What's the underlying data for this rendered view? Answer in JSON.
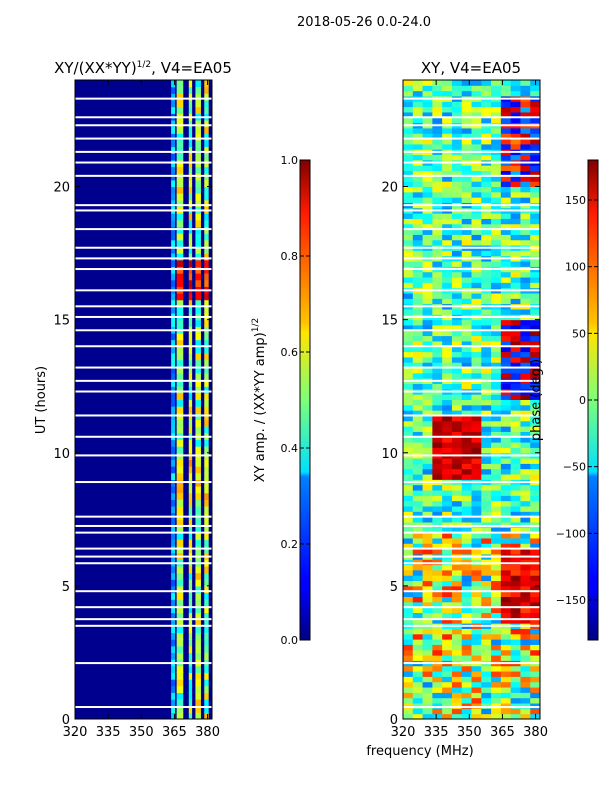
{
  "figure": {
    "suptitle": "2018-05-26 0.0-24.0"
  },
  "chart_data": [
    {
      "type": "heatmap",
      "panel": "amplitude",
      "title_main": "XY/(XX*YY)",
      "title_sup": "1/2",
      "title_tail": ", V4=EA05",
      "xlabel": "",
      "ylabel": "UT (hours)",
      "xlim": [
        320,
        382
      ],
      "ylim": [
        0,
        24
      ],
      "xticks": [
        320,
        335,
        350,
        365,
        380
      ],
      "yticks": [
        0,
        5,
        10,
        15,
        20
      ],
      "colorscale": "jet",
      "colorbar": {
        "label_main": "XY amp. / (XX*YY amp)",
        "label_sup": "1/2",
        "range": [
          0.0,
          1.0
        ],
        "ticks": [
          0.0,
          0.2,
          0.4,
          0.6,
          0.8,
          1.0
        ],
        "tick_labels": [
          "0.0",
          "0.2",
          "0.4",
          "0.6",
          "0.8",
          "1.0"
        ]
      }
    },
    {
      "type": "heatmap",
      "panel": "phase",
      "title": "XY, V4=EA05",
      "xlabel": "frequency (MHz)",
      "ylabel": "",
      "xlim": [
        320,
        382
      ],
      "ylim": [
        0,
        24
      ],
      "xticks": [
        320,
        335,
        350,
        365,
        380
      ],
      "yticks": [
        0,
        5,
        10,
        15,
        20
      ],
      "colorscale": "jet",
      "colorbar": {
        "label": "phase (deg.)",
        "range": [
          -180,
          180
        ],
        "ticks": [
          -150,
          -100,
          -50,
          0,
          50,
          100,
          150
        ],
        "tick_labels": [
          "−150",
          "−100",
          "−50",
          "0",
          "50",
          "100",
          "150"
        ]
      }
    }
  ]
}
